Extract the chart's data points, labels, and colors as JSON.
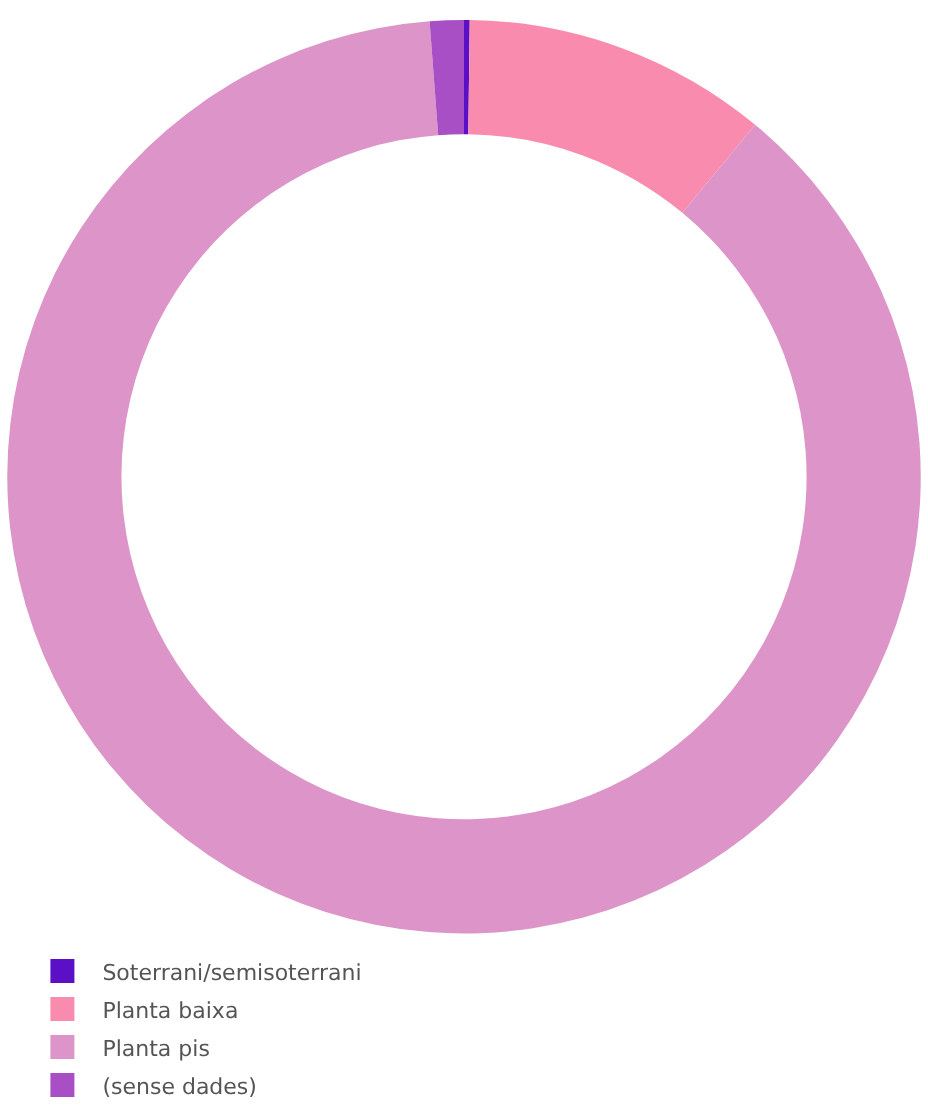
{
  "chart_data": {
    "type": "donut",
    "categories": [
      "Soterrani/semisoterrani",
      "Planta baixa",
      "Planta pis",
      "(sense dades)"
    ],
    "values": [
      0.2,
      10.8,
      87.8,
      1.2
    ],
    "colors": [
      "#5b10c8",
      "#f98cae",
      "#dd94c8",
      "#a84fc6"
    ],
    "legend": "bottom left"
  }
}
